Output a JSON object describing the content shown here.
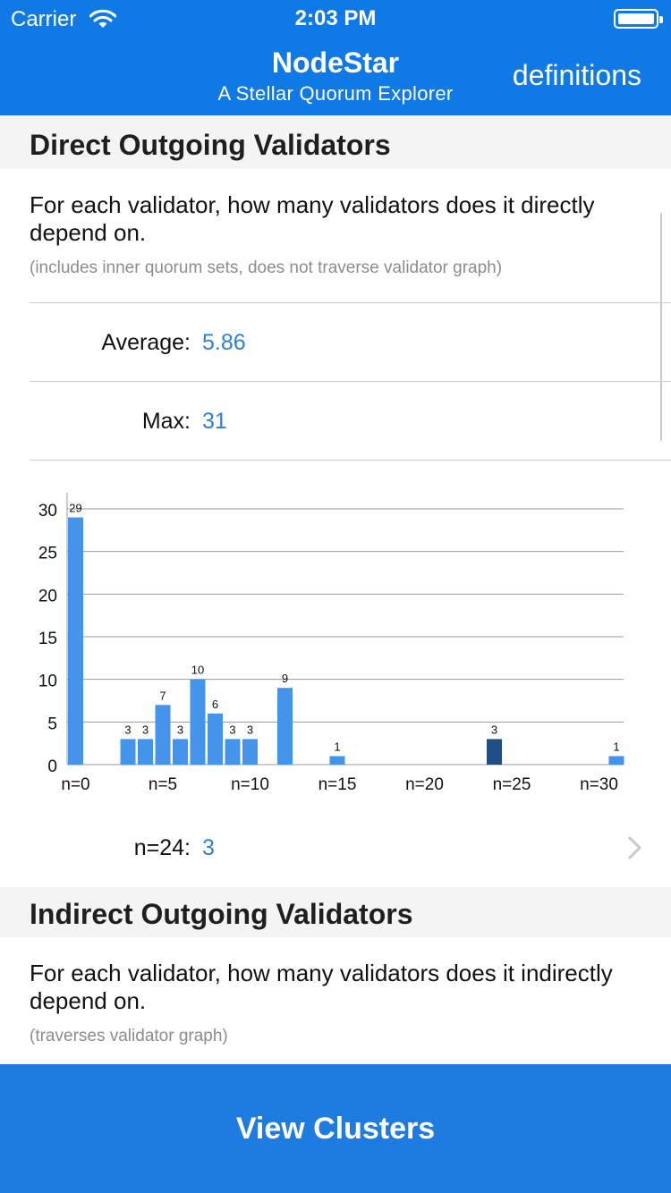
{
  "status_bar": {
    "carrier": "Carrier",
    "time": "2:03 PM"
  },
  "nav": {
    "title": "NodeStar",
    "subtitle": "A Stellar Quorum Explorer",
    "definitions_label": "definitions"
  },
  "colors": {
    "nav_bg": "#0f7ae5",
    "accent": "#2f80d5",
    "bar": "#4394ea",
    "bar_selected": "#1f4e82",
    "cta_bg": "#1e7ce0"
  },
  "direct": {
    "header": "Direct Outgoing Validators",
    "description": "For each validator, how many validators does it directly depend on.",
    "note": "(includes inner quorum sets, does not traverse validator graph)",
    "average_label": "Average:",
    "average_value": "5.86",
    "max_label": "Max:",
    "max_value": "31",
    "selected_label": "n=24:",
    "selected_value": "3"
  },
  "chart_data": {
    "type": "bar",
    "x": [
      0,
      3,
      4,
      5,
      6,
      7,
      8,
      9,
      10,
      12,
      15,
      24,
      31
    ],
    "values": [
      29,
      3,
      3,
      7,
      3,
      10,
      6,
      3,
      3,
      9,
      1,
      3,
      1
    ],
    "xlim": [
      0,
      31
    ],
    "ylim": [
      0,
      30
    ],
    "y_ticks": [
      0,
      5,
      10,
      15,
      20,
      25,
      30
    ],
    "x_tick_labels": [
      "n=0",
      "n=5",
      "n=10",
      "n=15",
      "n=20",
      "n=25",
      "n=30"
    ],
    "x_tick_values": [
      0,
      5,
      10,
      15,
      20,
      25,
      30
    ],
    "selected_x": 24,
    "grid": true,
    "data_labels": true
  },
  "indirect": {
    "header": "Indirect Outgoing Validators",
    "description": "For each validator, how many validators does it indirectly depend on.",
    "note": "(traverses validator graph)"
  },
  "cta": {
    "label": "View Clusters"
  }
}
